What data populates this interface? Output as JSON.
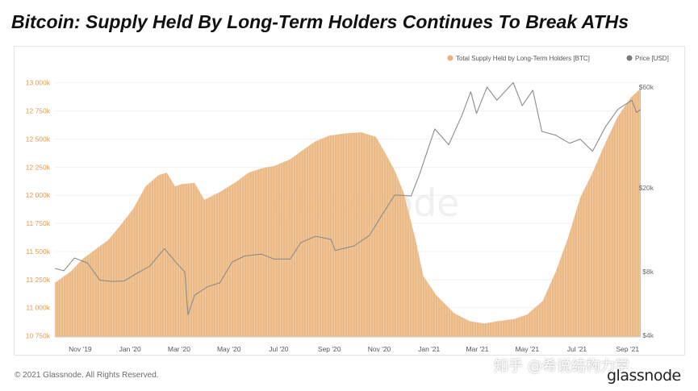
{
  "headline": "Bitcoin: Supply Held By Long-Term Holders Continues To Break ATHs",
  "footer": {
    "copyright": "© 2021 Glassnode. All Rights Reserved.",
    "brand": "glassnode",
    "chart_watermark": "glassnode",
    "overlay_watermark": "知乎 @希说结构力学"
  },
  "colors": {
    "supply": "#e9b37a",
    "supply_stroke": "#d9975a",
    "price": "#8c8c8c",
    "left_axis_text": "#e29a4e",
    "right_axis_text": "#6b6b6b"
  },
  "chart_data": {
    "type": "area",
    "title": "",
    "x_labels": [
      "Nov '19",
      "Jan '20",
      "Mar '20",
      "May '20",
      "Jul '20",
      "Sep '20",
      "Nov '20",
      "Jan '21",
      "Mar '21",
      "May '21",
      "Jul '21",
      "Sep '21"
    ],
    "x_range": [
      "2019-10-01",
      "2021-09-17"
    ],
    "y_left": {
      "ticks": [
        10750,
        11000,
        11250,
        11500,
        11750,
        12000,
        12250,
        12500,
        12750,
        13000
      ],
      "tick_labels": [
        "10 750k",
        "11 000k",
        "11 250k",
        "11 500k",
        "11 750k",
        "12 000k",
        "12 250k",
        "12 500k",
        "12 750k",
        "13 000k"
      ],
      "range": [
        10740,
        13120
      ]
    },
    "y_right": {
      "scale": "log",
      "ticks": [
        4000,
        8000,
        20000,
        60000
      ],
      "tick_labels": [
        "$4k",
        "$8k",
        "$20k",
        "$60k"
      ]
    },
    "legend_position": "top-right",
    "series": [
      {
        "name": "Total Supply Held by Long-Term Holders [BTC]",
        "kind": "area",
        "axis": "left",
        "unit": "thousand BTC",
        "points": [
          [
            "2019-10-01",
            11220
          ],
          [
            "2019-10-20",
            11320
          ],
          [
            "2019-11-05",
            11440
          ],
          [
            "2019-11-20",
            11520
          ],
          [
            "2019-12-05",
            11600
          ],
          [
            "2019-12-20",
            11730
          ],
          [
            "2020-01-05",
            11880
          ],
          [
            "2020-01-20",
            12080
          ],
          [
            "2020-02-05",
            12180
          ],
          [
            "2020-02-15",
            12200
          ],
          [
            "2020-02-25",
            12080
          ],
          [
            "2020-03-05",
            12100
          ],
          [
            "2020-03-20",
            12110
          ],
          [
            "2020-04-01",
            11960
          ],
          [
            "2020-04-20",
            12030
          ],
          [
            "2020-05-10",
            12120
          ],
          [
            "2020-05-25",
            12200
          ],
          [
            "2020-06-10",
            12240
          ],
          [
            "2020-06-25",
            12260
          ],
          [
            "2020-07-15",
            12320
          ],
          [
            "2020-08-01",
            12410
          ],
          [
            "2020-08-15",
            12480
          ],
          [
            "2020-09-01",
            12530
          ],
          [
            "2020-09-20",
            12550
          ],
          [
            "2020-10-10",
            12560
          ],
          [
            "2020-10-28",
            12520
          ],
          [
            "2020-11-08",
            12380
          ],
          [
            "2020-11-20",
            12220
          ],
          [
            "2020-12-01",
            12020
          ],
          [
            "2020-12-15",
            11620
          ],
          [
            "2020-12-25",
            11280
          ],
          [
            "2021-01-10",
            11110
          ],
          [
            "2021-02-01",
            10950
          ],
          [
            "2021-02-20",
            10880
          ],
          [
            "2021-03-10",
            10860
          ],
          [
            "2021-03-25",
            10880
          ],
          [
            "2021-04-15",
            10900
          ],
          [
            "2021-05-01",
            10940
          ],
          [
            "2021-05-20",
            11060
          ],
          [
            "2021-06-05",
            11320
          ],
          [
            "2021-06-20",
            11620
          ],
          [
            "2021-07-05",
            11980
          ],
          [
            "2021-07-20",
            12200
          ],
          [
            "2021-08-05",
            12470
          ],
          [
            "2021-08-20",
            12700
          ],
          [
            "2021-09-05",
            12870
          ],
          [
            "2021-09-17",
            12950
          ]
        ]
      },
      {
        "name": "Price [USD]",
        "kind": "line",
        "axis": "right",
        "unit": "USD",
        "points": [
          [
            "2019-10-01",
            8300
          ],
          [
            "2019-10-12",
            8100
          ],
          [
            "2019-10-25",
            9300
          ],
          [
            "2019-11-10",
            8800
          ],
          [
            "2019-11-25",
            7300
          ],
          [
            "2019-12-10",
            7200
          ],
          [
            "2019-12-25",
            7250
          ],
          [
            "2020-01-10",
            7900
          ],
          [
            "2020-01-25",
            8500
          ],
          [
            "2020-02-12",
            10300
          ],
          [
            "2020-02-28",
            8700
          ],
          [
            "2020-03-08",
            8000
          ],
          [
            "2020-03-12",
            5000
          ],
          [
            "2020-03-20",
            6200
          ],
          [
            "2020-04-05",
            6800
          ],
          [
            "2020-04-20",
            7100
          ],
          [
            "2020-05-05",
            8900
          ],
          [
            "2020-05-20",
            9500
          ],
          [
            "2020-06-10",
            9700
          ],
          [
            "2020-06-25",
            9200
          ],
          [
            "2020-07-15",
            9200
          ],
          [
            "2020-07-28",
            11000
          ],
          [
            "2020-08-15",
            11800
          ],
          [
            "2020-09-03",
            11400
          ],
          [
            "2020-09-08",
            10100
          ],
          [
            "2020-10-01",
            10600
          ],
          [
            "2020-10-20",
            11900
          ],
          [
            "2020-11-05",
            15000
          ],
          [
            "2020-11-20",
            18500
          ],
          [
            "2020-12-10",
            18300
          ],
          [
            "2020-12-20",
            23000
          ],
          [
            "2021-01-08",
            38000
          ],
          [
            "2021-01-25",
            32000
          ],
          [
            "2021-02-10",
            44000
          ],
          [
            "2021-02-21",
            57000
          ],
          [
            "2021-02-28",
            45000
          ],
          [
            "2021-03-13",
            60000
          ],
          [
            "2021-03-25",
            52000
          ],
          [
            "2021-04-14",
            63000
          ],
          [
            "2021-04-25",
            49000
          ],
          [
            "2021-05-08",
            58000
          ],
          [
            "2021-05-19",
            37000
          ],
          [
            "2021-06-05",
            35500
          ],
          [
            "2021-06-22",
            32500
          ],
          [
            "2021-07-05",
            34000
          ],
          [
            "2021-07-20",
            29800
          ],
          [
            "2021-08-05",
            39000
          ],
          [
            "2021-08-20",
            47000
          ],
          [
            "2021-09-06",
            52000
          ],
          [
            "2021-09-12",
            45500
          ],
          [
            "2021-09-17",
            47000
          ]
        ]
      }
    ]
  }
}
